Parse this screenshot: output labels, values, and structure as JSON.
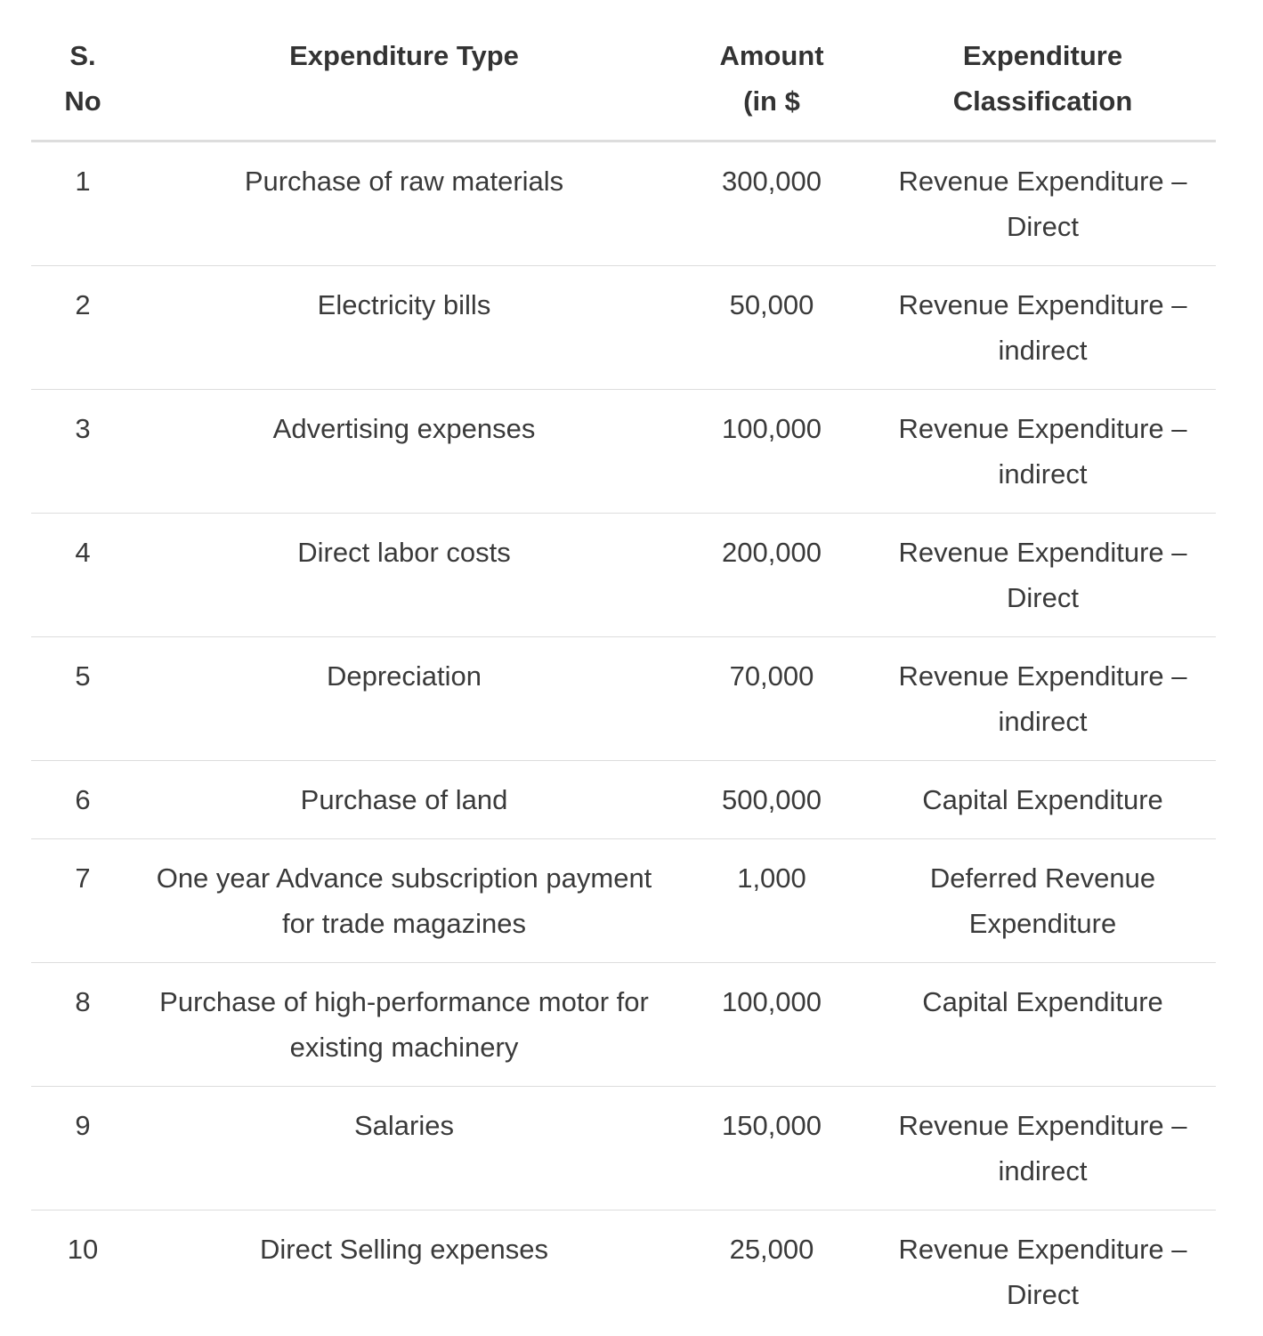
{
  "table": {
    "header": [
      "S. No",
      "Expenditure Type",
      "Amount (in $",
      "Expenditure Classification"
    ],
    "rows": [
      [
        "1",
        "Purchase of raw materials",
        "300,000",
        "Revenue Expenditure – Direct"
      ],
      [
        "2",
        "Electricity bills",
        "50,000",
        "Revenue Expenditure – indirect"
      ],
      [
        "3",
        "Advertising expenses",
        "100,000",
        "Revenue Expenditure – indirect"
      ],
      [
        "4",
        "Direct labor costs",
        "200,000",
        "Revenue Expenditure – Direct"
      ],
      [
        "5",
        "Depreciation",
        "70,000",
        "Revenue Expenditure – indirect"
      ],
      [
        "6",
        "Purchase of land",
        "500,000",
        "Capital Expenditure"
      ],
      [
        "7",
        "One year Advance subscription payment for trade magazines",
        "1,000",
        "Deferred Revenue Expenditure"
      ],
      [
        "8",
        "Purchase of high-performance motor for existing machinery",
        "100,000",
        "Capital Expenditure"
      ],
      [
        "9",
        "Salaries",
        "150,000",
        "Revenue Expenditure – indirect"
      ],
      [
        "10",
        "Direct Selling expenses",
        "25,000",
        "Revenue Expenditure – Direct"
      ]
    ]
  }
}
